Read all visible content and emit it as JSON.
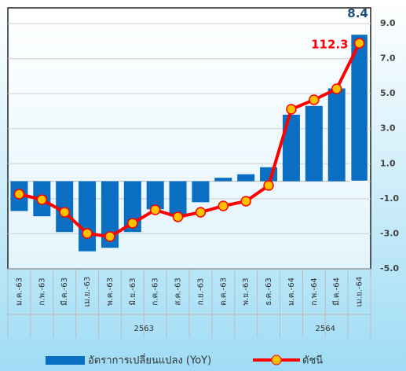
{
  "chart_data": {
    "type": "bar-line",
    "categories": [
      "ม.ค.-63",
      "ก.พ.-63",
      "มี.ค.-63",
      "เม.ย.-63",
      "พ.ค.-63",
      "มิ.ย.-63",
      "ก.ค.-63",
      "ส.ค.-63",
      "ก.ย.-63",
      "ต.ค.-63",
      "พ.ย.-63",
      "ธ.ค.-63",
      "ม.ค.-64",
      "ก.พ.-64",
      "มี.ค.-64",
      "เม.ย.-64"
    ],
    "groups": [
      {
        "label": "2563",
        "count": 12
      },
      {
        "label": "2564",
        "count": 4
      }
    ],
    "series": [
      {
        "name": "อัตราการเปลี่ยนแปลง (YoY)",
        "type": "bar",
        "axis": "y2",
        "color": "#0a6fc2",
        "values": [
          -1.7,
          -2.0,
          -2.9,
          -4.0,
          -3.8,
          -2.9,
          -1.6,
          -2.0,
          -1.2,
          0.2,
          0.4,
          0.8,
          3.8,
          4.3,
          5.3,
          8.4
        ]
      },
      {
        "name": "ดัชนี",
        "type": "line",
        "color": "#ff0000",
        "marker_color": "#ffc000",
        "values": [
          93.1,
          92.4,
          90.8,
          88.1,
          87.7,
          89.4,
          91.1,
          90.2,
          90.8,
          91.6,
          92.2,
          94.2,
          103.9,
          105.1,
          106.5,
          112.3
        ]
      }
    ],
    "ylim": [
      83.6,
      116.8
    ],
    "y2lim": [
      -5,
      9.9
    ],
    "y2ticks": [
      {
        "value": 9,
        "label": "9.0"
      },
      {
        "value": 7,
        "label": "7.0"
      },
      {
        "value": 5,
        "label": "5.0"
      },
      {
        "value": 3,
        "label": "3.0"
      },
      {
        "value": 1,
        "label": "1.0"
      },
      {
        "value": -1,
        "label": "-1.0"
      },
      {
        "value": -3,
        "label": "-3.0"
      },
      {
        "value": -5,
        "label": "-5.0"
      }
    ],
    "grid": true
  }
}
